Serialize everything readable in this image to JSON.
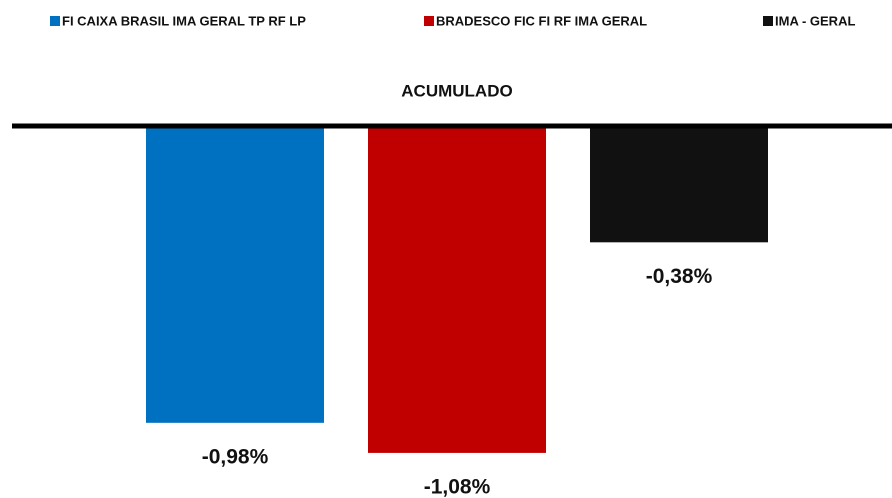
{
  "chart_data": {
    "type": "bar",
    "categories": [
      "ACUMULADO"
    ],
    "series": [
      {
        "name": "FI CAIXA BRASIL IMA GERAL TP RF LP",
        "color": "#0070c0",
        "values": [
          -0.98
        ],
        "value_labels": [
          "-0,98%"
        ]
      },
      {
        "name": "BRADESCO FIC FI RF IMA GERAL",
        "color": "#c00000",
        "values": [
          -1.08
        ],
        "value_labels": [
          "-1,08%"
        ]
      },
      {
        "name": "IMA - GERAL",
        "color": "#111111",
        "values": [
          -0.38
        ],
        "value_labels": [
          "-0,38%"
        ]
      }
    ],
    "ylim": [
      -1.2,
      0
    ]
  }
}
